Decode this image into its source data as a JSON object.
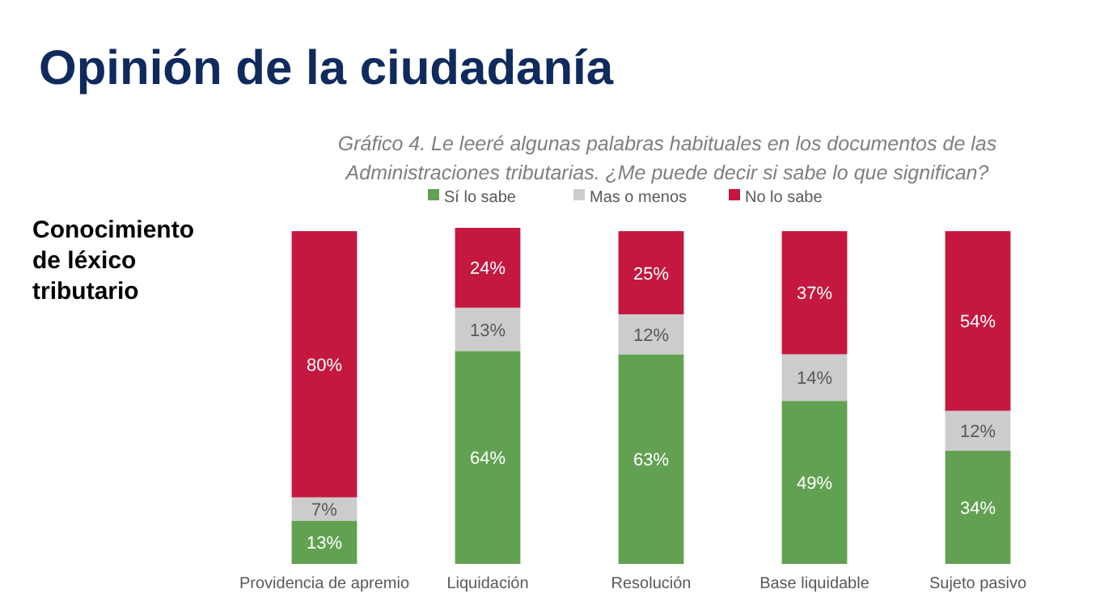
{
  "chart_data": {
    "type": "bar",
    "title": "Opinión de la ciudadanía",
    "subtitle": "Gráfico 4. Le leeré algunas palabras habituales en los documentos de las Administraciones tributarias. ¿Me puede decir si sabe lo que significan?",
    "annotations": [
      "Conocimiento de léxico tributario"
    ],
    "categories": [
      "Providencia de apremio",
      "Liquidación",
      "Resolución",
      "Base liquidable",
      "Sujeto pasivo"
    ],
    "stacked": true,
    "legend": "top",
    "tick_labels": "x",
    "series": [
      {
        "name": "Sí lo sabe",
        "color": "#62a152",
        "values": [
          13,
          64,
          63,
          49,
          34
        ],
        "value_labels": [
          "13%",
          "64%",
          "63%",
          "49%",
          "34%"
        ]
      },
      {
        "name": "Mas o menos",
        "color": "#cccccc",
        "values": [
          7,
          13,
          12,
          14,
          12
        ],
        "value_labels": [
          "7%",
          "13%",
          "12%",
          "14%",
          "12%"
        ]
      },
      {
        "name": "No lo sabe",
        "color": "#c41840",
        "values": [
          80,
          24,
          25,
          37,
          54
        ],
        "value_labels": [
          "80%",
          "24%",
          "25%",
          "37%",
          "54%"
        ]
      }
    ]
  }
}
